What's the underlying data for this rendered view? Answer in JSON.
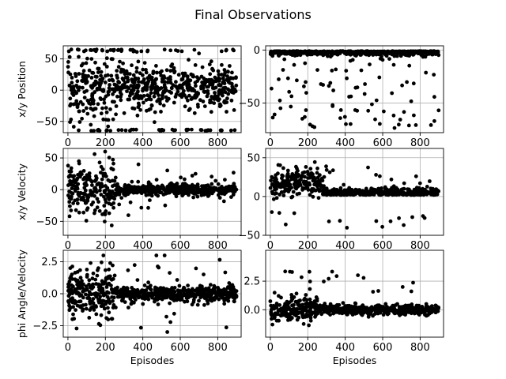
{
  "figure": {
    "title": "Final Observations"
  },
  "chart_data": [
    {
      "type": "scatter",
      "title": "",
      "xlabel": "",
      "ylabel": "x/y Position",
      "xlim": [
        -25,
        925
      ],
      "ylim": [
        -68,
        71
      ],
      "xticks": [
        0,
        200,
        400,
        600,
        800
      ],
      "yticks": [
        -50,
        0,
        50
      ],
      "grid": true,
      "marker_color": "#000000",
      "series": [
        {
          "x": [],
          "y": []
        }
      ]
    },
    {
      "type": "scatter",
      "title": "",
      "xlabel": "",
      "ylabel": "",
      "xlim": [
        -25,
        925
      ],
      "ylim": [
        -78,
        4
      ],
      "xticks": [
        0,
        200,
        400,
        600,
        800
      ],
      "yticks": [
        -50,
        0
      ],
      "grid": true,
      "marker_color": "#000000",
      "series": [
        {
          "x": [],
          "y": []
        }
      ]
    },
    {
      "type": "scatter",
      "title": "",
      "xlabel": "",
      "ylabel": "x/y Velocity",
      "xlim": [
        -25,
        925
      ],
      "ylim": [
        -72,
        65
      ],
      "xticks": [
        0,
        200,
        400,
        600,
        800
      ],
      "yticks": [
        -50,
        0,
        50
      ],
      "grid": true,
      "marker_color": "#000000",
      "series": [
        {
          "x": [],
          "y": []
        }
      ]
    },
    {
      "type": "scatter",
      "title": "",
      "xlabel": "",
      "ylabel": "",
      "xlim": [
        -25,
        925
      ],
      "ylim": [
        -50,
        62
      ],
      "xticks": [
        0,
        200,
        400,
        600,
        800
      ],
      "yticks": [
        -50,
        0,
        50
      ],
      "grid": true,
      "marker_color": "#000000",
      "series": [
        {
          "x": [],
          "y": []
        }
      ]
    },
    {
      "type": "scatter",
      "title": "",
      "xlabel": "Episodes",
      "ylabel": "phi Angle/Velocity",
      "xlim": [
        -25,
        925
      ],
      "ylim": [
        -3.4,
        3.4
      ],
      "xticks": [
        0,
        200,
        400,
        600,
        800
      ],
      "yticks": [
        -2.5,
        0.0,
        2.5
      ],
      "ytick_labels": [
        "−2.5",
        "0.0",
        "2.5"
      ],
      "grid": true,
      "marker_color": "#000000",
      "series": [
        {
          "x": [],
          "y": []
        }
      ]
    },
    {
      "type": "scatter",
      "title": "",
      "xlabel": "Episodes",
      "ylabel": "",
      "xlim": [
        -25,
        925
      ],
      "ylim": [
        -2.4,
        5.2
      ],
      "xticks": [
        0,
        200,
        400,
        600,
        800
      ],
      "yticks": [
        0.0,
        2.5
      ],
      "ytick_labels": [
        "0.0",
        "2.5"
      ],
      "grid": true,
      "marker_color": "#000000",
      "series": [
        {
          "x": [],
          "y": []
        }
      ]
    }
  ]
}
